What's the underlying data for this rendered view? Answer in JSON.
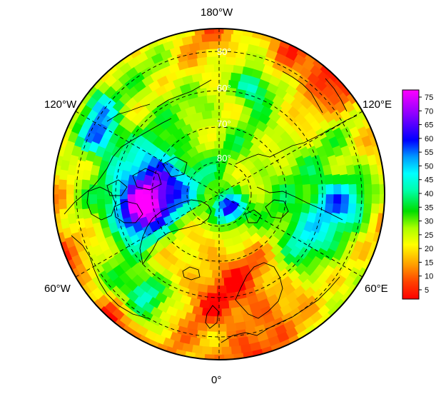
{
  "map": {
    "projection": "north polar stereographic",
    "longitude_labels": {
      "top": "180°W",
      "upper_left": "120°W",
      "upper_right": "120°E",
      "lower_left": "60°W",
      "lower_right": "60°E",
      "bottom": "0°"
    },
    "latitude_labels": [
      "50°",
      "60°",
      "70°",
      "80°"
    ]
  },
  "colorbar": {
    "ticks": [
      "75",
      "70",
      "65",
      "60",
      "55",
      "50",
      "45",
      "40",
      "35",
      "30",
      "25",
      "20",
      "15",
      "10",
      "5"
    ],
    "range": [
      0,
      80
    ],
    "colors": [
      "#ff0000",
      "#ff5a00",
      "#ffaa00",
      "#ffff00",
      "#aaff00",
      "#00ee00",
      "#00ffaa",
      "#00ffff",
      "#0090ff",
      "#0000ff",
      "#8000ff",
      "#ff00ff"
    ]
  }
}
